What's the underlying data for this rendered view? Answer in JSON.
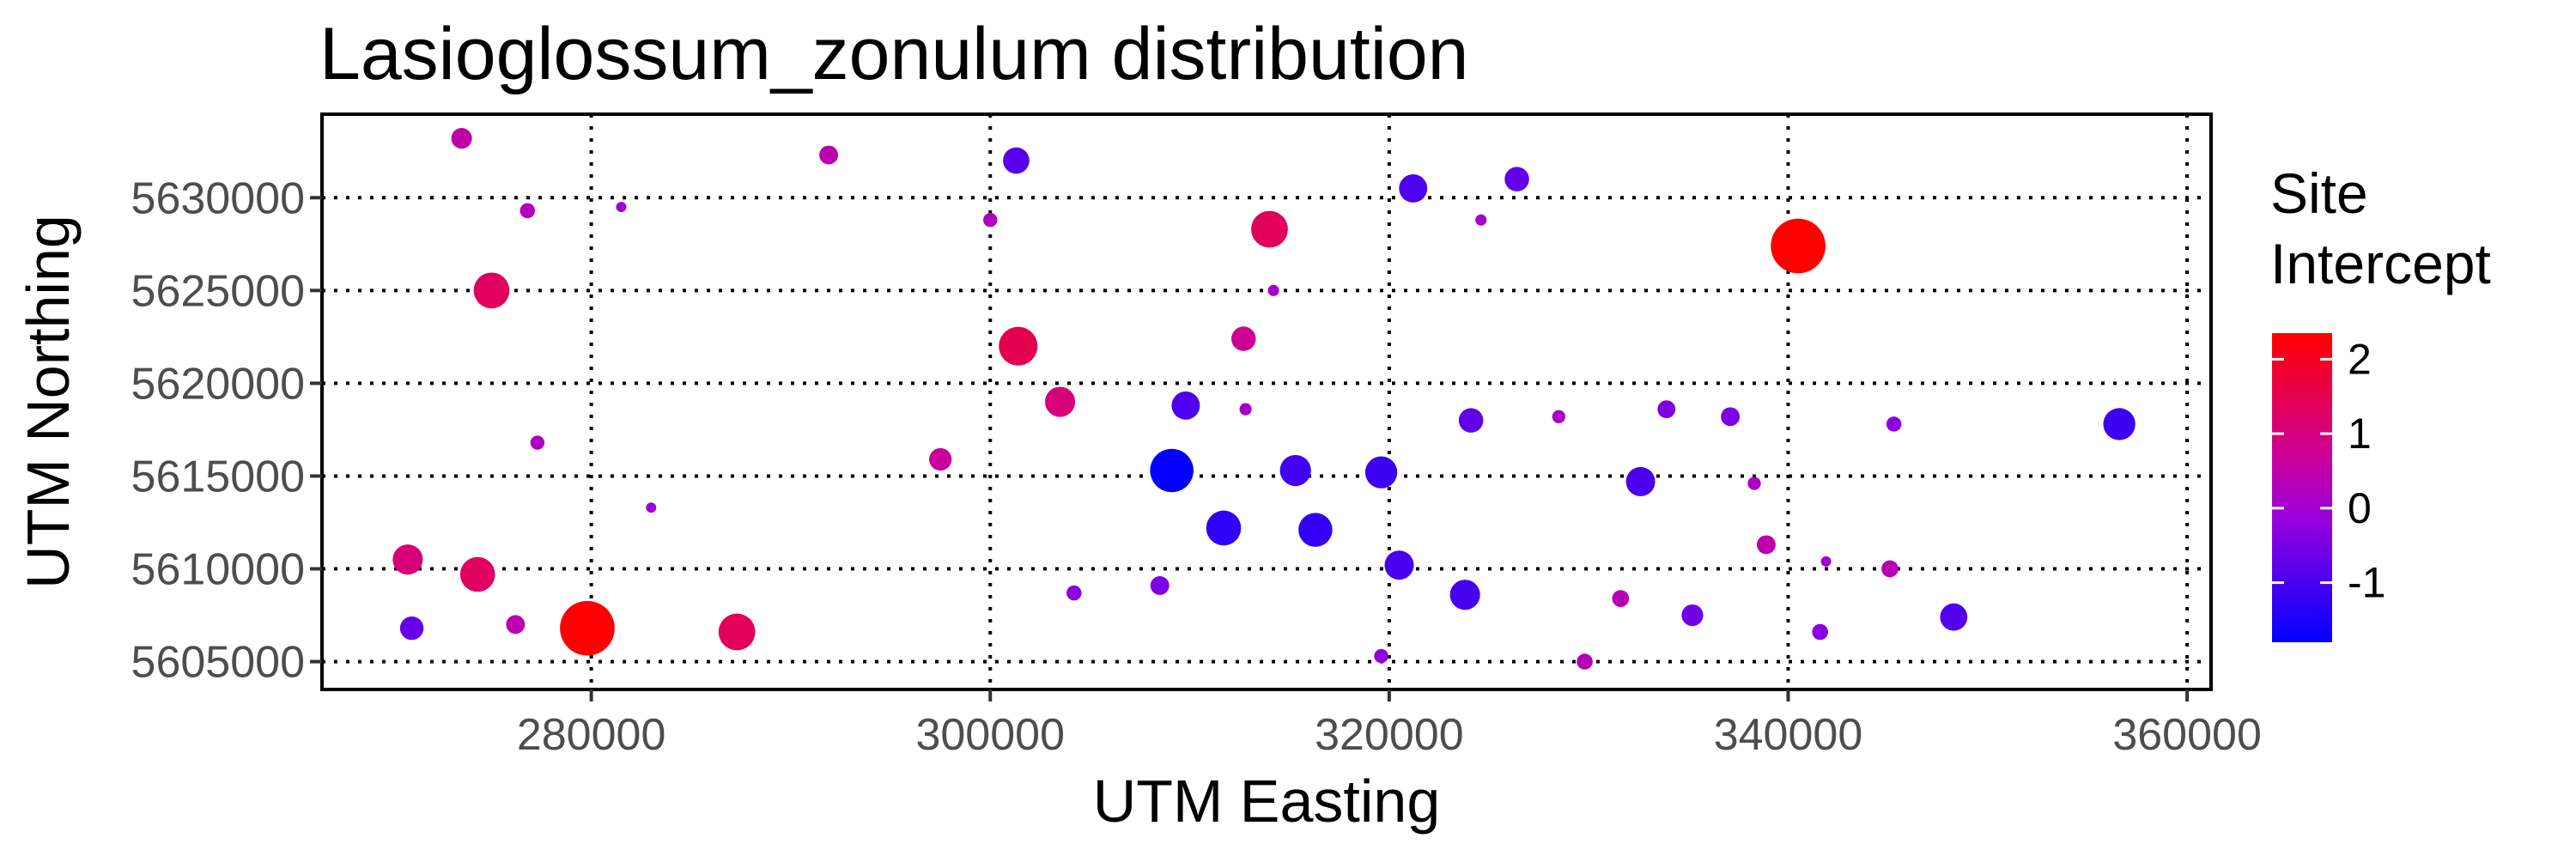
{
  "chart_data": {
    "type": "scatter",
    "title": "Lasioglossum_zonulum distribution",
    "xlabel": "UTM Easting",
    "ylabel": "UTM Northing",
    "xlim": [
      266500,
      361200
    ],
    "ylim": [
      5603500,
      5634500
    ],
    "x_ticks": [
      280000,
      300000,
      320000,
      340000,
      360000
    ],
    "y_ticks": [
      5605000,
      5610000,
      5615000,
      5620000,
      5625000,
      5630000
    ],
    "grid": true,
    "grid_style": "dotted",
    "legend": {
      "title_lines": [
        "Site",
        "Intercept"
      ],
      "placement": "right",
      "type": "color-gradient",
      "range": [
        -1.8,
        2.35
      ],
      "ticks": [
        2,
        1,
        0,
        -1
      ],
      "colors": {
        "low": "#0000ff",
        "mid": "#cc0099",
        "high": "#ff0000"
      }
    },
    "size_note": "point size scales with |Site Intercept|",
    "points": [
      {
        "x": 273500,
        "y": 5633200,
        "v": 0.55
      },
      {
        "x": 276800,
        "y": 5629300,
        "v": 0.25
      },
      {
        "x": 281500,
        "y": 5629500,
        "v": 0.0
      },
      {
        "x": 275000,
        "y": 5625000,
        "v": 1.35
      },
      {
        "x": 277300,
        "y": 5616800,
        "v": 0.2
      },
      {
        "x": 283000,
        "y": 5613300,
        "v": 0.0
      },
      {
        "x": 270800,
        "y": 5610500,
        "v": 1.05
      },
      {
        "x": 274300,
        "y": 5609700,
        "v": 1.3
      },
      {
        "x": 271000,
        "y": 5606800,
        "v": -0.7
      },
      {
        "x": 276200,
        "y": 5607000,
        "v": 0.45
      },
      {
        "x": 279800,
        "y": 5606800,
        "v": 2.35
      },
      {
        "x": 287300,
        "y": 5606600,
        "v": 1.4
      },
      {
        "x": 291900,
        "y": 5632300,
        "v": 0.45
      },
      {
        "x": 300000,
        "y": 5628800,
        "v": 0.2
      },
      {
        "x": 297500,
        "y": 5615900,
        "v": 0.65
      },
      {
        "x": 301300,
        "y": 5632000,
        "v": -0.85
      },
      {
        "x": 301400,
        "y": 5622000,
        "v": 1.5
      },
      {
        "x": 303500,
        "y": 5619000,
        "v": 1.05
      },
      {
        "x": 304200,
        "y": 5608700,
        "v": -0.25
      },
      {
        "x": 308500,
        "y": 5609100,
        "v": -0.45
      },
      {
        "x": 309100,
        "y": 5615300,
        "v": -1.75
      },
      {
        "x": 309800,
        "y": 5618800,
        "v": -0.95
      },
      {
        "x": 311700,
        "y": 5612200,
        "v": -1.3
      },
      {
        "x": 312800,
        "y": 5618600,
        "v": 0.1
      },
      {
        "x": 312700,
        "y": 5622400,
        "v": 0.75
      },
      {
        "x": 314000,
        "y": 5628300,
        "v": 1.4
      },
      {
        "x": 314200,
        "y": 5625000,
        "v": 0.05
      },
      {
        "x": 315300,
        "y": 5615300,
        "v": -1.1
      },
      {
        "x": 316300,
        "y": 5612100,
        "v": -1.25
      },
      {
        "x": 319600,
        "y": 5615200,
        "v": -1.15
      },
      {
        "x": 319600,
        "y": 5605300,
        "v": -0.2
      },
      {
        "x": 320500,
        "y": 5610200,
        "v": -1.0
      },
      {
        "x": 321200,
        "y": 5630500,
        "v": -0.95
      },
      {
        "x": 323800,
        "y": 5608600,
        "v": -1.05
      },
      {
        "x": 324100,
        "y": 5618000,
        "v": -0.75
      },
      {
        "x": 324600,
        "y": 5628800,
        "v": 0.05
      },
      {
        "x": 326400,
        "y": 5631000,
        "v": -0.75
      },
      {
        "x": 328500,
        "y": 5618200,
        "v": 0.15
      },
      {
        "x": 329800,
        "y": 5605000,
        "v": 0.3
      },
      {
        "x": 331600,
        "y": 5608400,
        "v": 0.35
      },
      {
        "x": 332600,
        "y": 5614700,
        "v": -1.0
      },
      {
        "x": 333900,
        "y": 5618600,
        "v": -0.4
      },
      {
        "x": 335200,
        "y": 5607500,
        "v": -0.6
      },
      {
        "x": 337100,
        "y": 5618200,
        "v": -0.45
      },
      {
        "x": 338300,
        "y": 5614600,
        "v": 0.15
      },
      {
        "x": 338900,
        "y": 5611300,
        "v": 0.45
      },
      {
        "x": 340500,
        "y": 5627400,
        "v": 2.35
      },
      {
        "x": 341600,
        "y": 5606600,
        "v": -0.3
      },
      {
        "x": 341900,
        "y": 5610400,
        "v": 0.0
      },
      {
        "x": 345100,
        "y": 5610000,
        "v": 0.35
      },
      {
        "x": 345300,
        "y": 5617800,
        "v": -0.25
      },
      {
        "x": 348300,
        "y": 5607400,
        "v": -0.9
      },
      {
        "x": 356600,
        "y": 5617800,
        "v": -1.15
      }
    ]
  }
}
